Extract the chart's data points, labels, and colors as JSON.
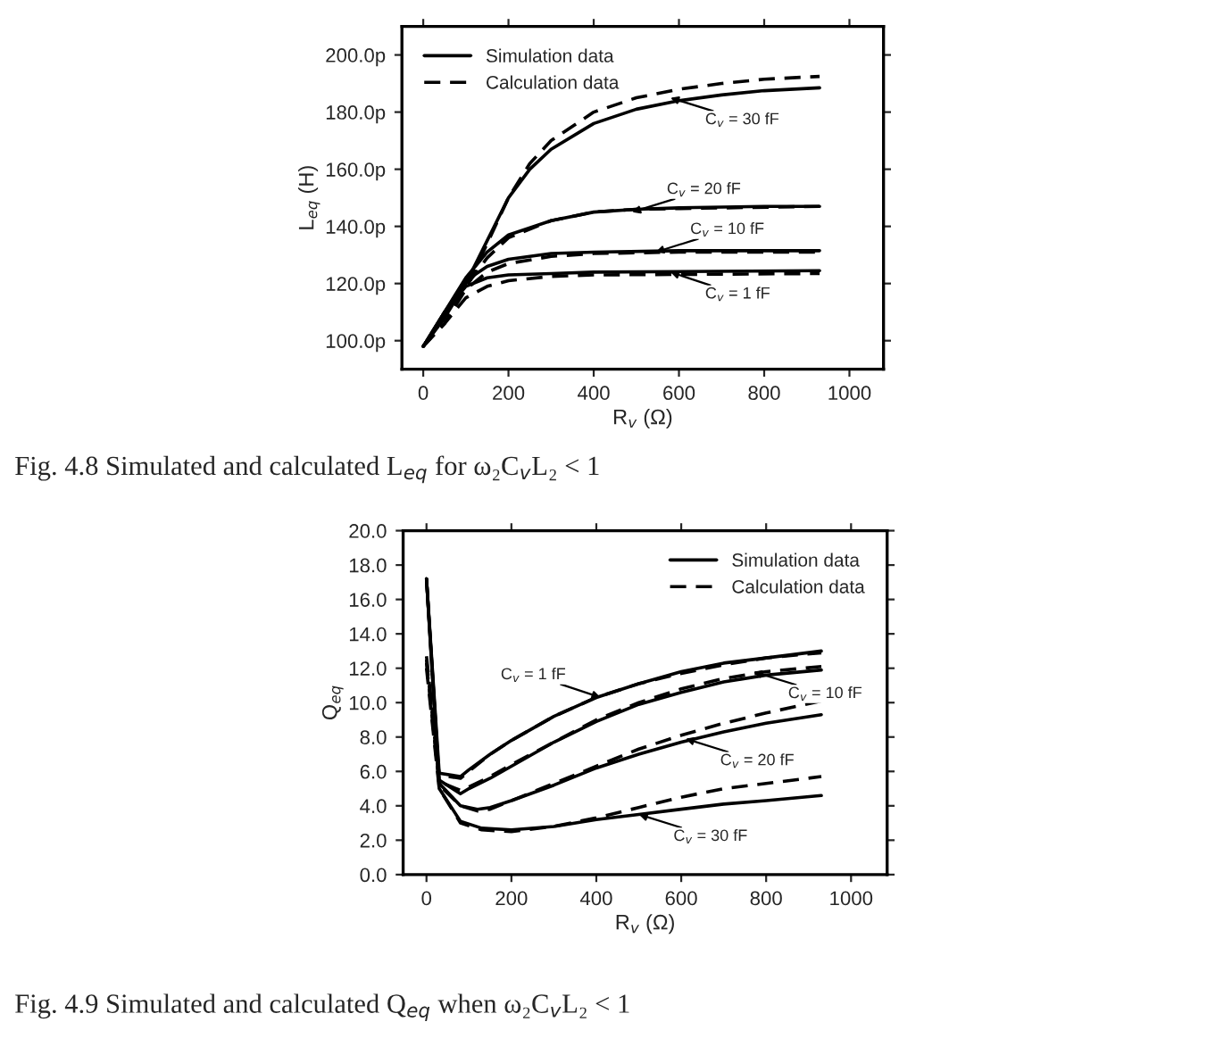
{
  "chart_data": [
    {
      "type": "line",
      "xlabel": "R$_{v}$ (Ω)",
      "ylabel": "L$_{eq}$ (H)",
      "xlim": [
        -50,
        1080
      ],
      "ylim": [
        90,
        210
      ],
      "xticks": [
        0,
        200,
        400,
        600,
        800,
        1000
      ],
      "yticks": [
        {
          "value": 100,
          "label": "100.0p"
        },
        {
          "value": 120,
          "label": "120.0p"
        },
        {
          "value": 140,
          "label": "140.0p"
        },
        {
          "value": 160,
          "label": "160.0p"
        },
        {
          "value": 180,
          "label": "180.0p"
        },
        {
          "value": 200,
          "label": "200.0p"
        }
      ],
      "legend": "top left",
      "grid": false,
      "series": [
        {
          "name": "Simulation data",
          "color": "#000000",
          "line_style": "solid",
          "x": [
            0,
            50,
            100,
            150,
            200,
            250,
            300,
            400,
            500,
            600,
            700,
            800,
            930
          ],
          "values": [
            98,
            108,
            120,
            135,
            150,
            160,
            167,
            176,
            181,
            184,
            186,
            187.5,
            188.5
          ]
        },
        {
          "name": "Calculation data",
          "color": "#000000",
          "line_style": "dashed",
          "x": [
            0,
            50,
            100,
            150,
            200,
            250,
            300,
            400,
            500,
            600,
            700,
            800,
            930
          ],
          "values": [
            98,
            106,
            118,
            134,
            150,
            162,
            170,
            180,
            185,
            188,
            190,
            191.5,
            192.5
          ]
        },
        {
          "color": "#000000",
          "line_style": "solid",
          "x": [
            0,
            50,
            100,
            150,
            200,
            300,
            400,
            500,
            600,
            800,
            930
          ],
          "values": [
            98,
            110,
            122,
            131,
            137,
            142,
            145,
            146,
            146.5,
            147,
            147
          ]
        },
        {
          "color": "#000000",
          "line_style": "dashed",
          "x": [
            0,
            50,
            100,
            150,
            200,
            300,
            400,
            500,
            930
          ],
          "values": [
            98,
            108,
            119,
            129,
            136,
            142,
            145,
            146,
            147
          ]
        },
        {
          "color": "#000000",
          "line_style": "solid",
          "x": [
            0,
            50,
            100,
            150,
            200,
            300,
            400,
            600,
            930
          ],
          "values": [
            98,
            110,
            121,
            126,
            128.5,
            130.5,
            131,
            131.5,
            131.5
          ]
        },
        {
          "color": "#000000",
          "line_style": "dashed",
          "x": [
            0,
            50,
            100,
            150,
            200,
            300,
            400,
            600,
            930
          ],
          "values": [
            98,
            108,
            118,
            124,
            127,
            129.5,
            130.5,
            131,
            131
          ]
        },
        {
          "color": "#000000",
          "line_style": "solid",
          "x": [
            0,
            50,
            100,
            150,
            200,
            300,
            400,
            930
          ],
          "values": [
            98,
            110,
            119,
            122,
            123,
            123.5,
            124,
            124.5
          ]
        },
        {
          "color": "#000000",
          "line_style": "dashed",
          "x": [
            0,
            50,
            100,
            150,
            200,
            300,
            400,
            930
          ],
          "values": [
            98,
            106,
            115,
            119,
            121,
            122.5,
            123,
            123.5
          ]
        }
      ],
      "annotations": [
        {
          "text": "C$_{v}$ = 30 fF",
          "x": 580,
          "y": 185
        },
        {
          "text": "C$_{v}$ = 20 fF",
          "x": 490,
          "y": 145
        },
        {
          "text": "C$_{v}$ = 10 fF",
          "x": 545,
          "y": 131
        },
        {
          "text": "C$_{v}$ = 1 fF",
          "x": 580,
          "y": 124
        },
        "Fig. 4.8 Simulated and calculated L$_{eq}$ for ω₂C$_{v}$L₂ < 1"
      ]
    },
    {
      "type": "line",
      "xlabel": "R$_{v}$ (Ω)",
      "ylabel": "Q$_{eq}$",
      "xlim": [
        -55,
        1085
      ],
      "ylim": [
        0,
        20
      ],
      "xticks": [
        0,
        200,
        400,
        600,
        800,
        1000
      ],
      "yticks": [
        {
          "value": 0,
          "label": "0.0"
        },
        {
          "value": 2,
          "label": "2.0"
        },
        {
          "value": 4,
          "label": "4.0"
        },
        {
          "value": 6,
          "label": "6.0"
        },
        {
          "value": 8,
          "label": "8.0"
        },
        {
          "value": 10,
          "label": "10.0"
        },
        {
          "value": 12,
          "label": "12.0"
        },
        {
          "value": 14,
          "label": "14.0"
        },
        {
          "value": 16,
          "label": "16.0"
        },
        {
          "value": 18,
          "label": "18.0"
        },
        {
          "value": 20,
          "label": "20.0"
        }
      ],
      "legend": "top right",
      "grid": false,
      "series": [
        {
          "name": "Simulation data",
          "color": "#000000",
          "line_style": "solid",
          "x": [
            0,
            30,
            80,
            100,
            150,
            200,
            300,
            400,
            500,
            600,
            700,
            800,
            930
          ],
          "values": [
            17.2,
            5.9,
            5.7,
            6.1,
            7.0,
            7.8,
            9.2,
            10.3,
            11.1,
            11.8,
            12.3,
            12.6,
            13.0
          ]
        },
        {
          "name": "Calculation data",
          "color": "#000000",
          "line_style": "dashed",
          "x": [
            0,
            30,
            80,
            100,
            150,
            200,
            300,
            400,
            500,
            600,
            700,
            800,
            930
          ],
          "values": [
            12.7,
            5.8,
            5.6,
            6.0,
            7.0,
            7.8,
            9.2,
            10.3,
            11.1,
            11.7,
            12.2,
            12.6,
            12.9
          ]
        },
        {
          "color": "#000000",
          "line_style": "solid",
          "x": [
            0,
            30,
            80,
            100,
            150,
            200,
            300,
            400,
            500,
            600,
            700,
            800,
            930
          ],
          "values": [
            17.2,
            5.5,
            4.7,
            5.0,
            5.6,
            6.3,
            7.7,
            8.9,
            9.9,
            10.6,
            11.2,
            11.6,
            11.9
          ]
        },
        {
          "color": "#000000",
          "line_style": "dashed",
          "x": [
            0,
            30,
            80,
            100,
            150,
            200,
            300,
            400,
            500,
            600,
            700,
            800,
            930
          ],
          "values": [
            12.5,
            5.4,
            4.9,
            5.1,
            5.7,
            6.4,
            7.7,
            9.0,
            10.0,
            10.8,
            11.4,
            11.8,
            12.1
          ]
        },
        {
          "color": "#000000",
          "line_style": "solid",
          "x": [
            0,
            30,
            80,
            120,
            150,
            200,
            300,
            400,
            500,
            600,
            700,
            800,
            930
          ],
          "values": [
            17.2,
            5.3,
            4.0,
            3.8,
            3.9,
            4.3,
            5.2,
            6.2,
            7.0,
            7.7,
            8.3,
            8.8,
            9.3
          ]
        },
        {
          "color": "#000000",
          "line_style": "dashed",
          "x": [
            0,
            30,
            80,
            120,
            150,
            200,
            300,
            400,
            500,
            600,
            700,
            800,
            930
          ],
          "values": [
            12.3,
            5.2,
            4.0,
            3.7,
            3.8,
            4.3,
            5.3,
            6.3,
            7.3,
            8.1,
            8.8,
            9.4,
            10.1
          ]
        },
        {
          "color": "#000000",
          "line_style": "solid",
          "x": [
            0,
            30,
            80,
            130,
            200,
            300,
            400,
            500,
            600,
            700,
            800,
            930
          ],
          "values": [
            17.2,
            5.0,
            3.1,
            2.7,
            2.6,
            2.8,
            3.2,
            3.5,
            3.8,
            4.1,
            4.3,
            4.6
          ]
        },
        {
          "color": "#000000",
          "line_style": "dashed",
          "x": [
            0,
            30,
            80,
            130,
            200,
            300,
            400,
            500,
            600,
            700,
            800,
            930
          ],
          "values": [
            12.0,
            5.0,
            3.0,
            2.6,
            2.5,
            2.8,
            3.3,
            3.9,
            4.5,
            5.0,
            5.3,
            5.7
          ]
        }
      ],
      "annotations": [
        {
          "text": "C$_{v}$ = 1 fF",
          "x": 410,
          "y": 10.3
        },
        {
          "text": "C$_{v}$ = 10 fF",
          "x": 770,
          "y": 11.8
        },
        {
          "text": "C$_{v}$ = 20 fF",
          "x": 610,
          "y": 7.9
        },
        {
          "text": "C$_{v}$ = 30 fF",
          "x": 500,
          "y": 3.5
        },
        "Fig. 4.9 Simulated and calculated Q$_{eq}$ when ω₂C$_{v}$L₂ < 1"
      ]
    }
  ]
}
